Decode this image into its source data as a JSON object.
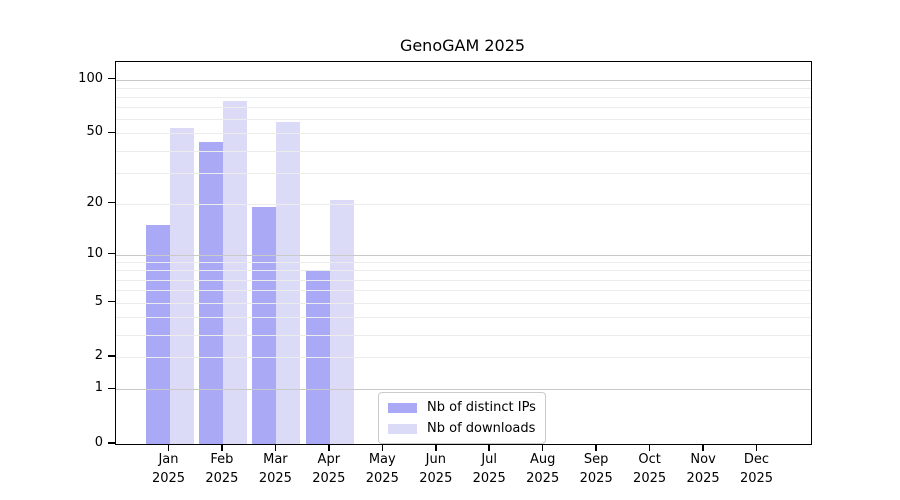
{
  "chart_data": {
    "type": "bar",
    "title": "GenoGAM 2025",
    "scale": "log1p",
    "categories": [
      "Jan 2025",
      "Feb 2025",
      "Mar 2025",
      "Apr 2025",
      "May 2025",
      "Jun 2025",
      "Jul 2025",
      "Aug 2025",
      "Sep 2025",
      "Oct 2025",
      "Nov 2025",
      "Dec 2025"
    ],
    "series": [
      {
        "name": "Nb of distinct IPs",
        "color": "#a9a9f5",
        "values": [
          15,
          45,
          19,
          8,
          null,
          null,
          null,
          null,
          null,
          null,
          null,
          null
        ]
      },
      {
        "name": "Nb of downloads",
        "color": "#dbdbf8",
        "values": [
          54,
          76,
          58,
          21,
          null,
          null,
          null,
          null,
          null,
          null,
          null,
          null
        ]
      }
    ],
    "y_ticks": [
      0,
      1,
      2,
      5,
      10,
      20,
      50,
      100
    ],
    "gridlines": {
      "major": [
        1,
        10,
        100
      ],
      "minor": [
        2,
        3,
        4,
        5,
        6,
        7,
        8,
        9,
        20,
        30,
        40,
        50,
        60,
        70,
        80,
        90
      ]
    },
    "ylim": [
      0,
      125
    ],
    "xlabel": "",
    "ylabel": "",
    "grid": "on",
    "legend_position": "lower center"
  },
  "legend": {
    "items": [
      {
        "label": "Nb of distinct IPs",
        "color": "#a9a9f5"
      },
      {
        "label": "Nb of downloads",
        "color": "#dbdbf8"
      }
    ]
  },
  "colors": {
    "background": "#ffffff",
    "axis": "#000000",
    "grid_major": "#c9c9c9",
    "grid_minor": "#ececec",
    "bar_distinct_ips": "#a9a9f5",
    "bar_downloads": "#dbdbf8"
  }
}
